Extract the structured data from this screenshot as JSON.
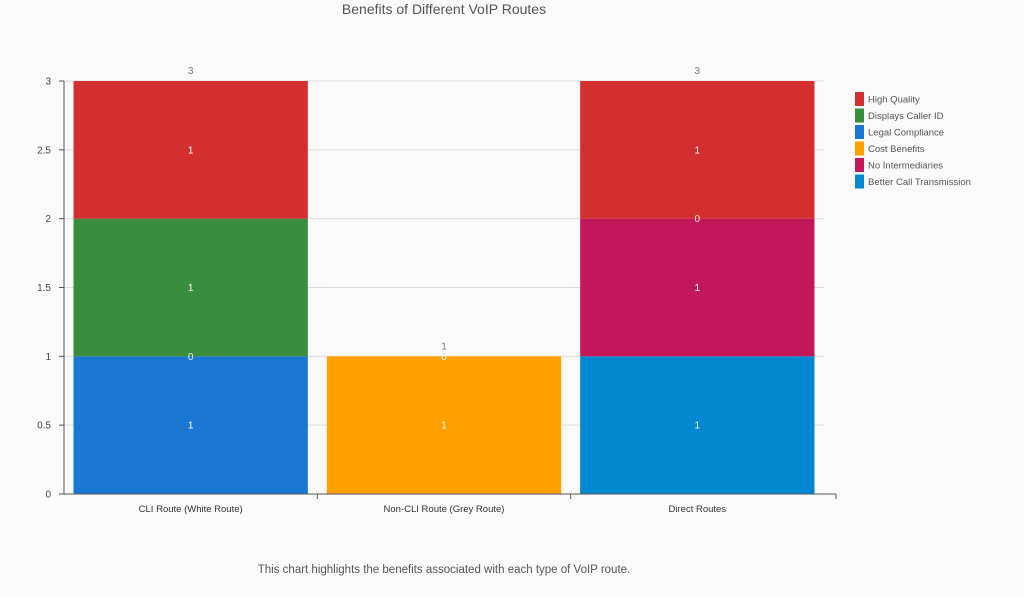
{
  "chart_data": {
    "type": "bar",
    "stacked": true,
    "title": "Benefits of Different VoIP Routes",
    "caption": "This chart highlights the benefits associated with each type of VoIP route.",
    "categories": [
      "CLI Route (White Route)",
      "Non-CLI Route (Grey Route)",
      "Direct Routes"
    ],
    "series": [
      {
        "name": "High Quality",
        "color": "#d32f2f",
        "values": [
          1,
          0,
          1
        ]
      },
      {
        "name": "Displays Caller ID",
        "color": "#388e3c",
        "values": [
          1,
          0,
          0
        ]
      },
      {
        "name": "Legal Compliance",
        "color": "#1976d2",
        "values": [
          1,
          0,
          0
        ]
      },
      {
        "name": "Cost Benefits",
        "color": "#ffa000",
        "values": [
          0,
          1,
          0
        ]
      },
      {
        "name": "No Intermediaries",
        "color": "#c2185b",
        "values": [
          0,
          0,
          1
        ]
      },
      {
        "name": "Better Call Transmission",
        "color": "#0288d1",
        "values": [
          0,
          0,
          1
        ]
      }
    ],
    "stack_segments": [
      [
        {
          "series": "Legal Compliance",
          "value": 1,
          "label": "1"
        },
        {
          "series": "Cost Benefits",
          "value": 0,
          "label": "0"
        },
        {
          "series": "Displays Caller ID",
          "value": 1,
          "label": "1"
        },
        {
          "series": "High Quality",
          "value": 1,
          "label": "1"
        }
      ],
      [
        {
          "series": "Cost Benefits",
          "value": 1,
          "label": "1"
        },
        {
          "series": "Legal Compliance",
          "value": 0,
          "label": "0"
        },
        {
          "series": "Displays Caller ID",
          "value": 0,
          "label": "0"
        }
      ],
      [
        {
          "series": "Better Call Transmission",
          "value": 1,
          "label": "1"
        },
        {
          "series": "No Intermediaries",
          "value": 1,
          "label": "1"
        },
        {
          "series": "Cost Benefits",
          "value": 0,
          "label": "0"
        },
        {
          "series": "High Quality",
          "value": 1,
          "label": "1"
        }
      ]
    ],
    "totals": [
      "3",
      "1",
      "3"
    ],
    "ylim": [
      0,
      3
    ],
    "yticks": [
      "0",
      "0.5",
      "1",
      "1.5",
      "2",
      "2.5",
      "3"
    ],
    "grid": true,
    "legend_position": "right",
    "xlabel": "",
    "ylabel": ""
  }
}
